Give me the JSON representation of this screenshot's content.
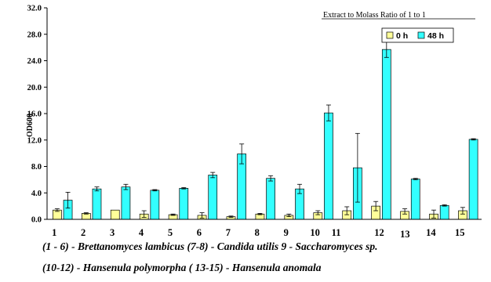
{
  "chart_data": {
    "type": "bar",
    "categories": [
      "1",
      "2",
      "3",
      "4",
      "5",
      "6",
      "7",
      "8",
      "9",
      "10",
      "11",
      "12",
      "13",
      "14",
      "15"
    ],
    "series": [
      {
        "name": "0 h",
        "color": "#ffff99",
        "values": [
          1.4,
          0.9,
          1.4,
          0.8,
          0.7,
          0.6,
          0.4,
          0.8,
          0.6,
          1.0,
          1.3,
          2.0,
          1.2,
          0.8,
          1.3
        ],
        "errors": [
          0.2,
          0.1,
          0.0,
          0.5,
          0.1,
          0.4,
          0.1,
          0.1,
          0.2,
          0.3,
          0.6,
          0.7,
          0.4,
          0.6,
          0.5
        ]
      },
      {
        "name": "48 h",
        "color": "#33ffff",
        "values": [
          2.9,
          4.6,
          4.9,
          4.4,
          4.7,
          6.7,
          9.9,
          6.2,
          4.6,
          16.1,
          7.8,
          25.7,
          6.1,
          2.1,
          12.1
        ],
        "errors": [
          1.2,
          0.3,
          0.4,
          0.1,
          0.1,
          0.4,
          1.5,
          0.4,
          0.7,
          1.2,
          5.2,
          1.2,
          0.1,
          0.1,
          0.1
        ]
      }
    ],
    "ylabel": "OD600",
    "ylim": [
      0,
      32
    ],
    "yticks": [
      "0.0",
      "4.0",
      "8.0",
      "12.0",
      "16.0",
      "20.0",
      "24.0",
      "28.0",
      "32.0"
    ],
    "annotation": "Extract to Molass Ratio of 1 to 1",
    "legend_position": "top-right",
    "grid": false
  },
  "captions": {
    "line1": "(1 - 6) - Brettanomyces lambicus  (7-8) - Candida utilis    9 - Saccharomyces sp.",
    "line2": "(10-12) - Hansenula polymorpha   ( 13-15) - Hansenula anomala"
  }
}
